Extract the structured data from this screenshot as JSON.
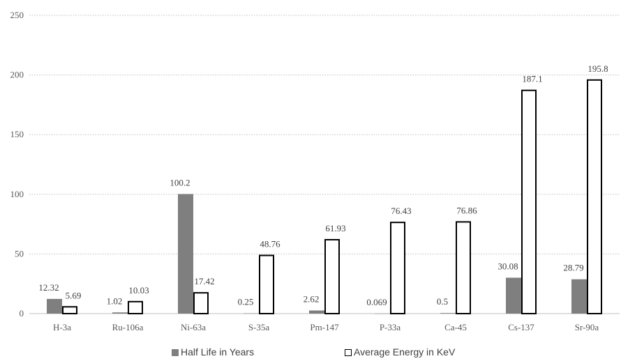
{
  "chart_data": {
    "type": "bar",
    "categories": [
      "H-3a",
      "Ru-106a",
      "Ni-63a",
      "S-35a",
      "Pm-147",
      "P-33a",
      "Ca-45",
      "Cs-137",
      "Sr-90a"
    ],
    "series": [
      {
        "name": "Half Life in Years",
        "values": [
          12.32,
          1.02,
          100.2,
          0.25,
          2.62,
          0.069,
          0.5,
          30.08,
          28.79
        ],
        "labels": [
          "12.32",
          "1.02",
          "100.2",
          "0.25",
          "2.62",
          "0.069",
          "0.5",
          "30.08",
          "28.79"
        ],
        "color": "#7f7f7f"
      },
      {
        "name": "Average Energy in KeV",
        "values": [
          5.69,
          10.03,
          17.42,
          48.76,
          61.93,
          76.43,
          76.86,
          187.1,
          195.8
        ],
        "labels": [
          "5.69",
          "10.03",
          "17.42",
          "48.76",
          "61.93",
          "76.43",
          "76.86",
          "187.1",
          "195.8"
        ],
        "color": "#ffffff",
        "border": "#000000"
      }
    ],
    "ylim": [
      0,
      250
    ],
    "yticks": [
      "0",
      "50",
      "100",
      "150",
      "200",
      "250"
    ],
    "ytick_values": [
      0,
      50,
      100,
      150,
      200,
      250
    ],
    "grid": "horizontal dotted",
    "legend_position": "bottom"
  }
}
